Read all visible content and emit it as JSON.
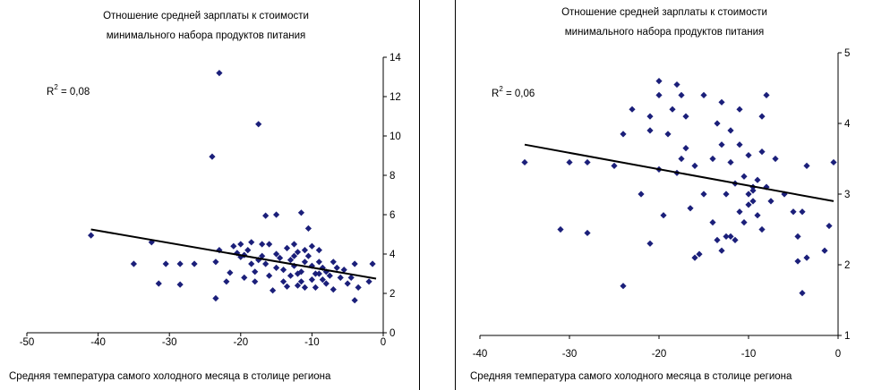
{
  "chart_data": [
    {
      "type": "scatter",
      "title": [
        "Отношение средней зарплаты к стоимости",
        "минимального набора продуктов питания"
      ],
      "xlabel": "Средняя температура самого холодного месяца в столице региона",
      "ylabel": "",
      "xlim": [
        -50,
        0
      ],
      "ylim": [
        0,
        14
      ],
      "xticks": [
        -50,
        -40,
        -30,
        -20,
        -10,
        0
      ],
      "yticks": [
        0,
        2,
        4,
        6,
        8,
        10,
        12,
        14
      ],
      "y_axis_side": "right",
      "grid": false,
      "marker_color": "#1b1f7a",
      "annotation": {
        "text": "= 0,08",
        "label": "R",
        "sup": "2"
      },
      "trendline": {
        "x": [
          -41,
          -1
        ],
        "y": [
          5.25,
          2.75
        ]
      },
      "points": [
        [
          -41,
          4.95
        ],
        [
          -35,
          3.5
        ],
        [
          -32.5,
          4.6
        ],
        [
          -31.5,
          2.5
        ],
        [
          -30.5,
          3.5
        ],
        [
          -28.5,
          2.45
        ],
        [
          -28.5,
          3.5
        ],
        [
          -24,
          8.95
        ],
        [
          -23,
          13.2
        ],
        [
          -23.5,
          3.6
        ],
        [
          -23,
          4.2
        ],
        [
          -23.5,
          1.75
        ],
        [
          -22,
          2.6
        ],
        [
          -21.5,
          3.05
        ],
        [
          -20.5,
          4.05
        ],
        [
          -20,
          4.5
        ],
        [
          -20,
          3.85
        ],
        [
          -19.5,
          3.95
        ],
        [
          -19,
          4.2
        ],
        [
          -18.5,
          4.6
        ],
        [
          -18.5,
          3.5
        ],
        [
          -18,
          3.1
        ],
        [
          -18,
          2.6
        ],
        [
          -17.5,
          10.6
        ],
        [
          -17,
          4.5
        ],
        [
          -17,
          3.9
        ],
        [
          -16.5,
          5.95
        ],
        [
          -16.5,
          3.5
        ],
        [
          -16,
          4.5
        ],
        [
          -16,
          2.9
        ],
        [
          -15.5,
          2.15
        ],
        [
          -15,
          6.0
        ],
        [
          -15,
          4.0
        ],
        [
          -15,
          3.3
        ],
        [
          -14.5,
          3.8
        ],
        [
          -14,
          3.2
        ],
        [
          -14,
          2.6
        ],
        [
          -13.5,
          4.3
        ],
        [
          -13,
          3.7
        ],
        [
          -13,
          2.9
        ],
        [
          -12.5,
          4.5
        ],
        [
          -12.5,
          3.9
        ],
        [
          -12.5,
          3.4
        ],
        [
          -12,
          2.4
        ],
        [
          -12,
          4.1
        ],
        [
          -11.5,
          6.1
        ],
        [
          -11.5,
          3.1
        ],
        [
          -11.5,
          2.6
        ],
        [
          -11,
          4.2
        ],
        [
          -11,
          3.6
        ],
        [
          -11,
          2.3
        ],
        [
          -10.5,
          5.3
        ],
        [
          -10.5,
          3.9
        ],
        [
          -10,
          2.7
        ],
        [
          -10,
          3.4
        ],
        [
          -10,
          4.4
        ],
        [
          -9.5,
          3.0
        ],
        [
          -9.5,
          2.3
        ],
        [
          -9,
          3.6
        ],
        [
          -9,
          4.2
        ],
        [
          -8.5,
          2.7
        ],
        [
          -8.5,
          3.3
        ],
        [
          -8,
          3.1
        ],
        [
          -8,
          2.5
        ],
        [
          -7.5,
          2.9
        ],
        [
          -7,
          3.6
        ],
        [
          -7,
          2.2
        ],
        [
          -6.5,
          3.3
        ],
        [
          -6,
          2.8
        ],
        [
          -5.5,
          3.2
        ],
        [
          -5,
          2.5
        ],
        [
          -4.5,
          2.8
        ],
        [
          -4,
          1.65
        ],
        [
          -4,
          3.5
        ],
        [
          -3.5,
          2.3
        ],
        [
          -2,
          2.6
        ],
        [
          -1.5,
          3.5
        ],
        [
          -26.5,
          3.5
        ],
        [
          -21,
          4.4
        ],
        [
          -19.5,
          2.8
        ],
        [
          -17.5,
          3.7
        ],
        [
          -13.5,
          2.35
        ],
        [
          -12,
          3.0
        ],
        [
          -9,
          3.0
        ]
      ]
    },
    {
      "type": "scatter",
      "title": [
        "Отношение средней зарплаты к стоимости",
        "минимального набора продуктов питания"
      ],
      "xlabel": "Средняя температура самого холодного месяца в столице региона",
      "ylabel": "",
      "xlim": [
        -40,
        0
      ],
      "ylim": [
        1,
        5
      ],
      "xticks": [
        -40,
        -30,
        -20,
        -10,
        0
      ],
      "yticks": [
        1,
        2,
        3,
        4,
        5
      ],
      "y_axis_side": "right",
      "grid": false,
      "marker_color": "#1b1f7a",
      "annotation": {
        "text": "= 0,06",
        "label": "R",
        "sup": "2"
      },
      "trendline": {
        "x": [
          -35,
          -0.5
        ],
        "y": [
          3.7,
          2.9
        ]
      },
      "points": [
        [
          -35,
          3.45
        ],
        [
          -31,
          2.5
        ],
        [
          -30,
          3.45
        ],
        [
          -28,
          2.45
        ],
        [
          -28,
          3.45
        ],
        [
          -25,
          3.4
        ],
        [
          -24,
          1.7
        ],
        [
          -24,
          3.85
        ],
        [
          -23,
          4.2
        ],
        [
          -22,
          3.0
        ],
        [
          -21,
          2.3
        ],
        [
          -21,
          4.1
        ],
        [
          -21,
          3.9
        ],
        [
          -20,
          4.6
        ],
        [
          -20,
          4.4
        ],
        [
          -20,
          3.35
        ],
        [
          -19.5,
          2.7
        ],
        [
          -19,
          3.85
        ],
        [
          -18.5,
          4.2
        ],
        [
          -18,
          4.55
        ],
        [
          -18,
          3.3
        ],
        [
          -17.5,
          3.5
        ],
        [
          -17.5,
          4.4
        ],
        [
          -17,
          3.65
        ],
        [
          -17,
          4.1
        ],
        [
          -16.5,
          2.8
        ],
        [
          -16,
          2.1
        ],
        [
          -16,
          3.4
        ],
        [
          -15,
          4.4
        ],
        [
          -15,
          3.0
        ],
        [
          -14,
          3.5
        ],
        [
          -14,
          2.6
        ],
        [
          -13.5,
          4.0
        ],
        [
          -13,
          4.3
        ],
        [
          -13,
          3.7
        ],
        [
          -13,
          2.2
        ],
        [
          -12.5,
          2.4
        ],
        [
          -12.5,
          3.0
        ],
        [
          -12,
          3.9
        ],
        [
          -12,
          2.4
        ],
        [
          -12,
          3.45
        ],
        [
          -11.5,
          2.35
        ],
        [
          -11.5,
          3.15
        ],
        [
          -11,
          4.2
        ],
        [
          -11,
          3.7
        ],
        [
          -11,
          2.75
        ],
        [
          -10.5,
          3.25
        ],
        [
          -10.5,
          2.6
        ],
        [
          -10,
          3.0
        ],
        [
          -10,
          2.85
        ],
        [
          -10,
          3.55
        ],
        [
          -9.5,
          3.1
        ],
        [
          -9.5,
          2.9
        ],
        [
          -9,
          3.2
        ],
        [
          -9,
          2.7
        ],
        [
          -8.5,
          3.6
        ],
        [
          -8.5,
          4.1
        ],
        [
          -8.5,
          2.5
        ],
        [
          -8,
          4.4
        ],
        [
          -8,
          3.1
        ],
        [
          -7.5,
          2.9
        ],
        [
          -7,
          3.5
        ],
        [
          -6,
          3.0
        ],
        [
          -5,
          2.75
        ],
        [
          -4.5,
          2.4
        ],
        [
          -4.5,
          2.05
        ],
        [
          -4,
          2.75
        ],
        [
          -4,
          1.6
        ],
        [
          -3.5,
          3.4
        ],
        [
          -3.5,
          2.1
        ],
        [
          -1.5,
          2.2
        ],
        [
          -1,
          2.55
        ],
        [
          -0.5,
          3.45
        ],
        [
          -13.5,
          2.35
        ],
        [
          -15.5,
          2.15
        ],
        [
          -9.5,
          3.05
        ]
      ]
    }
  ]
}
